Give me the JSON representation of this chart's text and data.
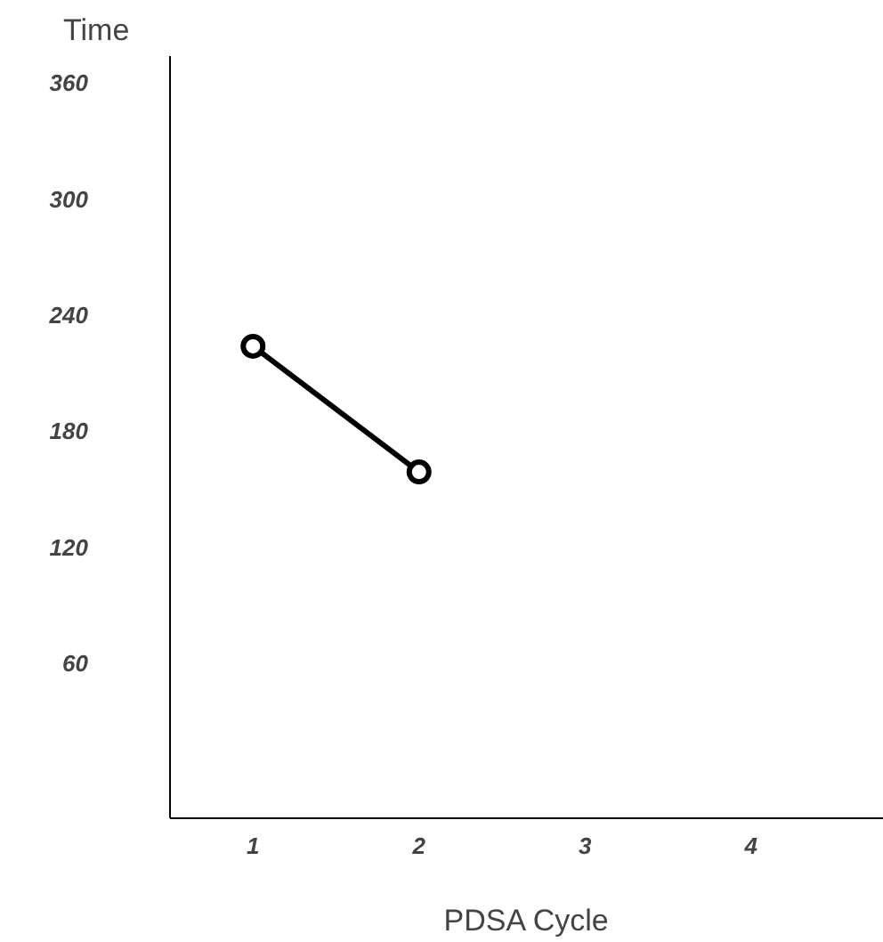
{
  "chart_data": {
    "type": "line",
    "xlabel": "PDSA Cycle",
    "ylabel": "Time",
    "x": [
      1,
      2
    ],
    "values": [
      224,
      159
    ],
    "color": "#000000",
    "xlim": [
      0.5,
      4.8
    ],
    "xticks": [
      1,
      2,
      3,
      4
    ],
    "ylim": [
      -20,
      374
    ],
    "yticks": [
      60,
      120,
      180,
      240,
      300,
      360
    ],
    "marker": "circle",
    "line_style": "solid",
    "grid": false
  }
}
